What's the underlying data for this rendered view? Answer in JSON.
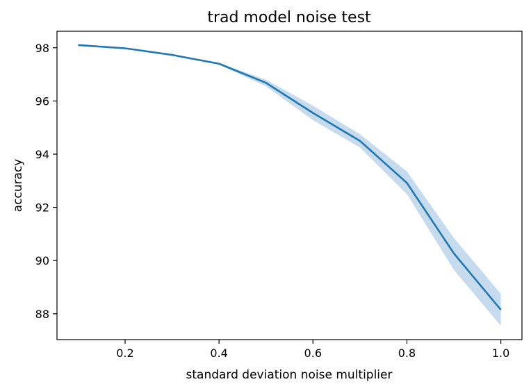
{
  "chart_data": {
    "type": "line",
    "title": "trad model noise test",
    "xlabel": "standard deviation noise multiplier",
    "ylabel": "accuracy",
    "xlim": [
      0.055,
      1.045
    ],
    "ylim": [
      87.03,
      98.62
    ],
    "xticks": [
      0.2,
      0.4,
      0.6,
      0.8,
      1.0
    ],
    "xtick_labels": [
      "0.2",
      "0.4",
      "0.6",
      "0.8",
      "1.0"
    ],
    "yticks": [
      88,
      90,
      92,
      94,
      96,
      98
    ],
    "ytick_labels": [
      "88",
      "90",
      "92",
      "94",
      "96",
      "98"
    ],
    "grid": false,
    "series": [
      {
        "x": [
          0.1,
          0.2,
          0.3,
          0.4,
          0.5,
          0.6,
          0.7,
          0.8,
          0.9,
          1.0
        ],
        "y": [
          98.1,
          97.98,
          97.73,
          97.4,
          96.68,
          95.55,
          94.5,
          92.92,
          90.27,
          88.15
        ],
        "lower": [
          98.08,
          97.96,
          97.7,
          97.37,
          96.55,
          95.28,
          94.25,
          92.5,
          89.65,
          87.55
        ],
        "upper": [
          98.12,
          98.0,
          97.76,
          97.43,
          96.8,
          95.82,
          94.75,
          93.35,
          90.85,
          88.75
        ],
        "color": "#1f77b4",
        "band_color": "#c6dbed"
      }
    ]
  }
}
